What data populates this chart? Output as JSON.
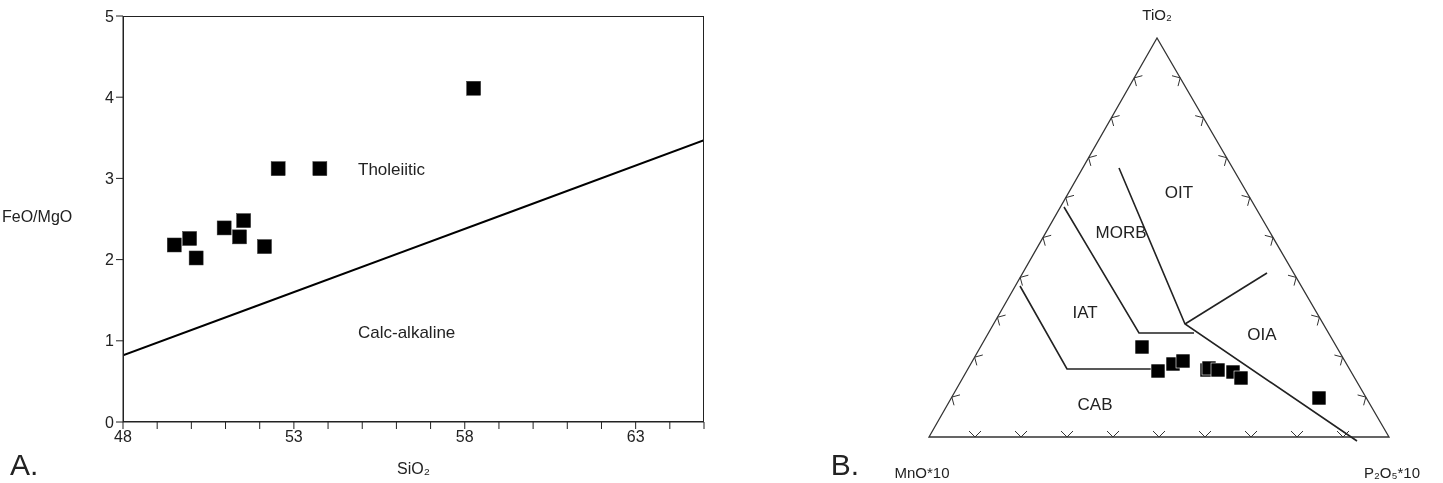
{
  "chart_data": [
    {
      "type": "scatter",
      "xlabel": "SiO₂",
      "ylabel": "FeO/MgO",
      "xlim": [
        48,
        65
      ],
      "ylim": [
        0,
        5
      ],
      "xticks": [
        48,
        {
          "value": 49,
          "label": null
        },
        {
          "value": 50,
          "label": null
        },
        {
          "value": 51,
          "label": null
        },
        {
          "value": 52,
          "label": null
        },
        53,
        {
          "value": 54,
          "label": null
        },
        {
          "value": 55,
          "label": null
        },
        {
          "value": 56,
          "label": null
        },
        {
          "value": 57,
          "label": null
        },
        58,
        {
          "value": 59,
          "label": null
        },
        {
          "value": 60,
          "label": null
        },
        {
          "value": 61,
          "label": null
        },
        {
          "value": 62,
          "label": null
        },
        63,
        {
          "value": 64,
          "label": null
        },
        {
          "value": 65,
          "label": null
        }
      ],
      "yticks": [
        0,
        1,
        2,
        3,
        4,
        5
      ],
      "annotations": [
        "Tholeiitic",
        "Calc-alkaline",
        "A."
      ],
      "series": [
        {
          "type": "scatter",
          "marker": "square",
          "color": "#000000",
          "x": [
            49.5,
            49.95,
            50.14,
            50.96,
            51.41,
            51.53,
            52.14,
            52.54,
            53.76,
            58.26
          ],
          "values": [
            2.18,
            2.26,
            2.02,
            2.39,
            2.28,
            2.48,
            2.16,
            3.12,
            3.12,
            4.11
          ]
        },
        {
          "type": "line",
          "marker": "none",
          "color": "#000000",
          "x": [
            48,
            65
          ],
          "values": [
            0.82,
            3.47
          ]
        }
      ]
    },
    {
      "type": "other",
      "annotations": [
        "TiO₂",
        "MnO*10",
        "P₂O₅*10",
        "OIT",
        "MORB",
        "IAT",
        "OIA",
        "CAB",
        "B."
      ]
    }
  ]
}
